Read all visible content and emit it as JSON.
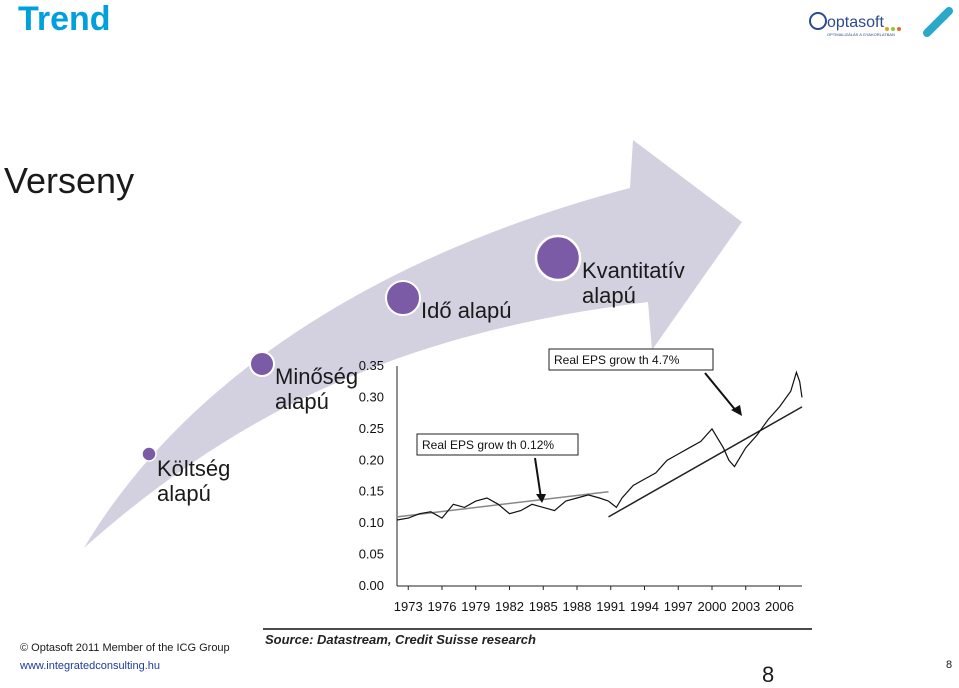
{
  "slide": {
    "title": "Trend",
    "subtitle": "Verseny",
    "stages": [
      {
        "label_line1": "Költség",
        "label_line2": "alapú"
      },
      {
        "label_line1": "Minőség",
        "label_line2": "alapú"
      },
      {
        "label_line1": "Idő alapú",
        "label_line2": ""
      },
      {
        "label_line1": "Kvantitatív",
        "label_line2": "alapú"
      }
    ],
    "colors": {
      "title": "#00a0df",
      "arrow": "#d3d0e0",
      "circle": "#7b5aa6",
      "url": "#1f3b99"
    }
  },
  "logo": {
    "name": "optasoft",
    "tagline": "OPTIMALIZÁLÁS A GYAKORLATBAN",
    "icon": "pen-icon"
  },
  "chart_data": {
    "type": "line",
    "yticks": [
      "0.35",
      "0.30",
      "0.25",
      "0.20",
      "0.15",
      "0.10",
      "0.05",
      "0.00"
    ],
    "xticks": [
      "1973",
      "1976",
      "1979",
      "1982",
      "1985",
      "1988",
      "1991",
      "1994",
      "1997",
      "2000",
      "2003",
      "2006"
    ],
    "ylim": [
      0,
      0.35
    ],
    "xlim": [
      1972,
      2008
    ],
    "source": "Source: Datastream, Credit Suisse research",
    "annotations": [
      {
        "text": "Real EPS grow th 0.12%"
      },
      {
        "text": "Real EPS grow th 4.7%"
      }
    ],
    "series": [
      {
        "x": [
          1972.0,
          1973.0,
          1974.0,
          1975.0,
          1976.0,
          1977.0,
          1978.0,
          1979.0,
          1980.0,
          1981.0,
          1982.0,
          1983.0,
          1984.0,
          1985.0,
          1986.0,
          1987.0,
          1988.0,
          1989.0,
          1990.0,
          1990.8
        ],
        "y": [
          0.105,
          0.108,
          0.115,
          0.118,
          0.108,
          0.13,
          0.125,
          0.135,
          0.14,
          0.13,
          0.115,
          0.12,
          0.13,
          0.125,
          0.12,
          0.135,
          0.14,
          0.145,
          0.14,
          0.135
        ]
      },
      {
        "x": [
          1990.8,
          1991.5,
          1992.0,
          1993.0,
          1994.0,
          1995.0,
          1996.0,
          1997.0,
          1998.0,
          1999.0,
          2000.0,
          2001.0,
          2001.5,
          2002.0,
          2003.0,
          2004.0,
          2005.0,
          2006.0,
          2007.0,
          2007.5,
          2007.8,
          2008.0
        ],
        "y": [
          0.135,
          0.125,
          0.14,
          0.16,
          0.17,
          0.18,
          0.2,
          0.21,
          0.22,
          0.23,
          0.25,
          0.22,
          0.2,
          0.19,
          0.22,
          0.24,
          0.265,
          0.285,
          0.31,
          0.34,
          0.325,
          0.3
        ]
      }
    ],
    "trend_lines": [
      {
        "x": [
          1972.0,
          1990.8
        ],
        "y": [
          0.11,
          0.15
        ]
      },
      {
        "x": [
          1990.8,
          2008.0
        ],
        "y": [
          0.11,
          0.285
        ]
      }
    ]
  },
  "footer": {
    "copyright": "© Optasoft 2011 Member of the ICG Group",
    "url": "www.integratedconsulting.hu",
    "page": "8",
    "page_big": "8"
  }
}
